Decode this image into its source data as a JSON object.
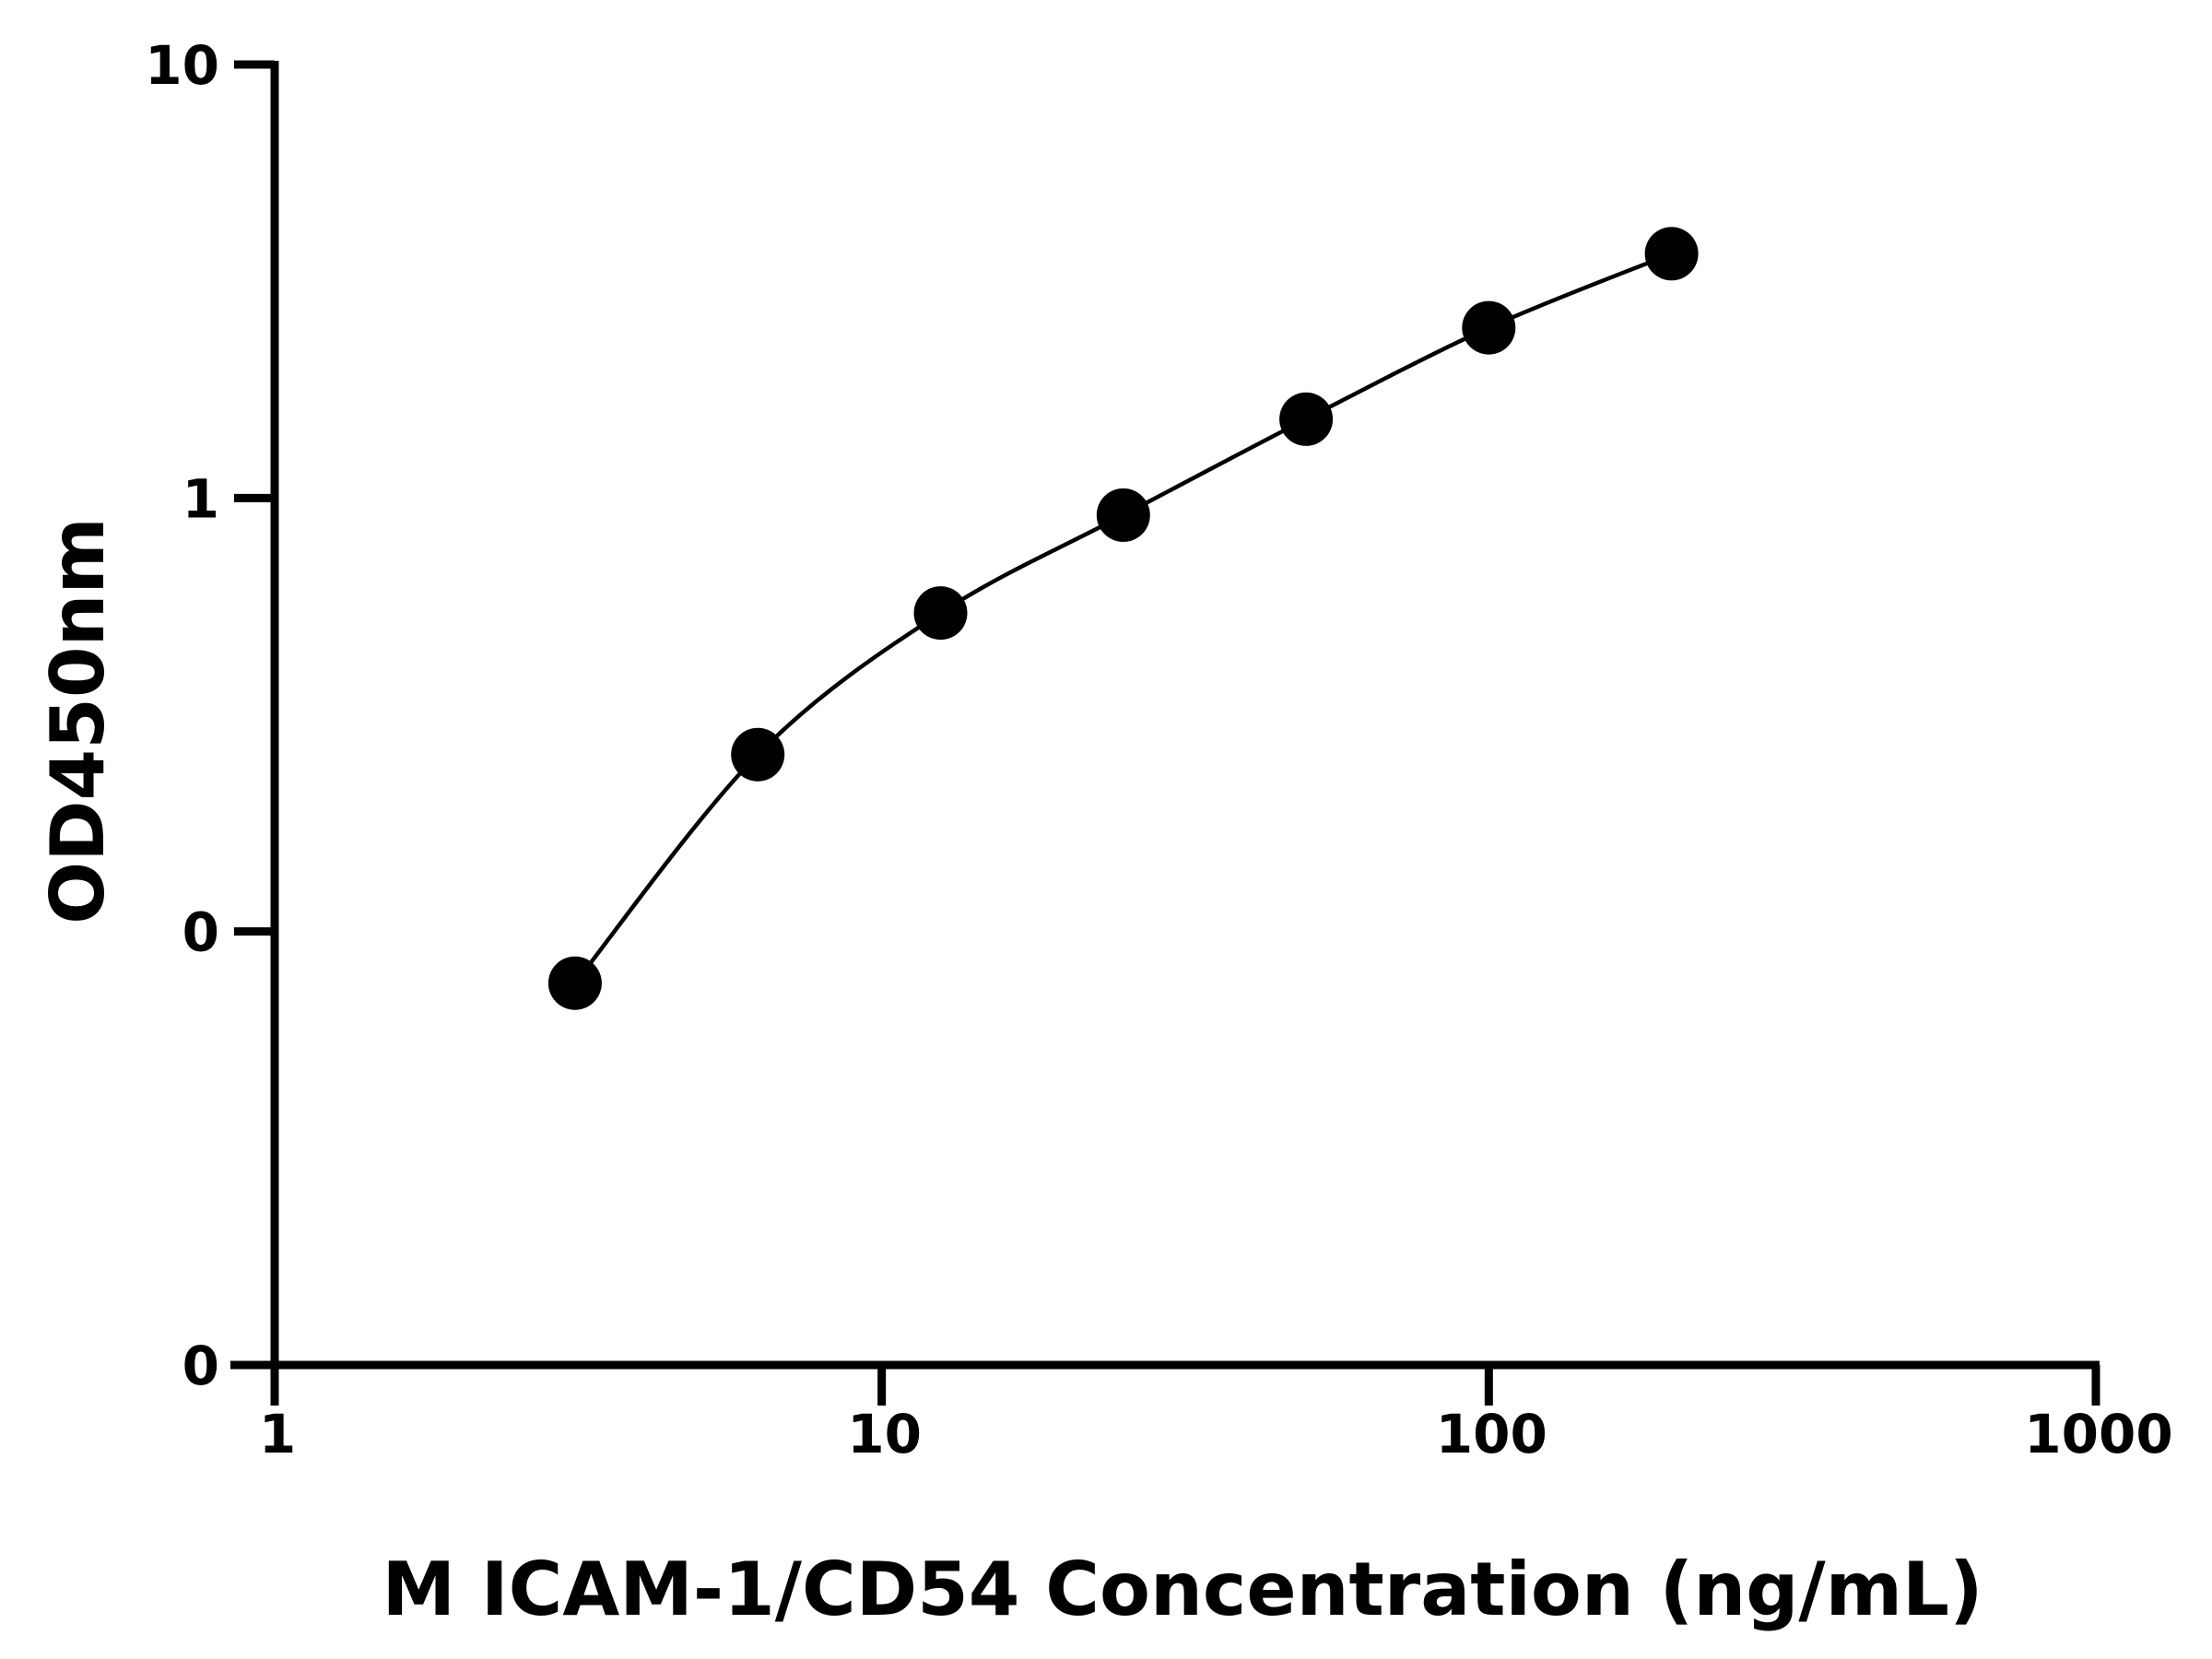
{
  "chart_data": {
    "type": "scatter",
    "title": "",
    "xlabel": "M ICAM-1/CD54 Concentration (ng/mL)",
    "ylabel": "OD450nm",
    "x_scale": "log",
    "xlim": [
      1,
      1000
    ],
    "x_ticks": [
      1,
      10,
      100,
      1000
    ],
    "x_tick_labels": [
      "1",
      "10",
      "100",
      "1000"
    ],
    "y_scale": "log",
    "ylim": [
      0.01,
      10
    ],
    "y_ticks": [
      0.01,
      0.1,
      1,
      10
    ],
    "y_tick_labels": [
      "0",
      "0",
      "1",
      "10"
    ],
    "grid": false,
    "legend": false,
    "series": [
      {
        "x": [
          3.125,
          6.25,
          12.5,
          25,
          50,
          100,
          200
        ],
        "y": [
          0.076,
          0.256,
          0.543,
          0.913,
          1.52,
          2.47,
          3.66
        ],
        "marker": "filled-circle",
        "fit_line": true,
        "color": "#000000"
      }
    ]
  }
}
